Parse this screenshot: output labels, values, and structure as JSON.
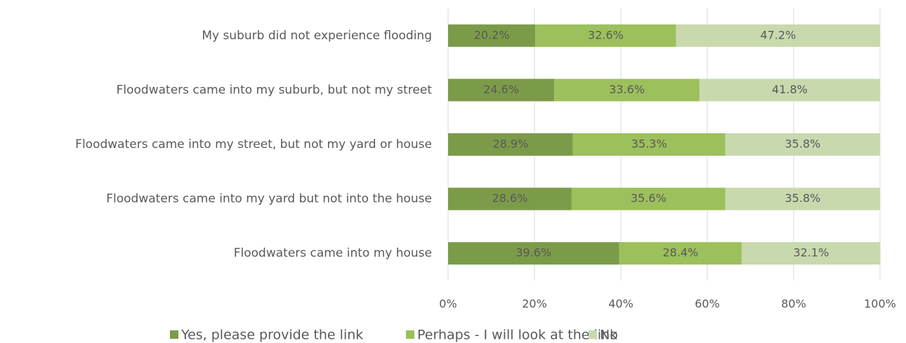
{
  "chart_data": {
    "type": "bar",
    "orientation": "horizontal",
    "stacked": true,
    "categories": [
      "My suburb did not experience flooding",
      "Floodwaters came into my suburb, but not my street",
      "Floodwaters came into my street, but not my yard or house",
      "Floodwaters came into my yard but not into the house",
      "Floodwaters came into my house"
    ],
    "series": [
      {
        "name": "Yes, please provide the link",
        "color": "#7b9b49",
        "values": [
          20.2,
          24.6,
          28.9,
          28.6,
          39.6
        ],
        "value_labels": [
          "20.2%",
          "24.6%",
          "28.9%",
          "28.6%",
          "39.6%"
        ]
      },
      {
        "name": "Perhaps - I will look at the link",
        "color": "#9cc05b",
        "values": [
          32.6,
          33.6,
          35.3,
          35.6,
          28.4
        ],
        "value_labels": [
          "32.6%",
          "33.6%",
          "35.3%",
          "35.6%",
          "28.4%"
        ]
      },
      {
        "name": "No",
        "color": "#c8d9ae",
        "values": [
          47.2,
          41.8,
          35.8,
          35.8,
          32.1
        ],
        "value_labels": [
          "47.2%",
          "41.8%",
          "35.8%",
          "35.8%",
          "32.1%"
        ]
      }
    ],
    "xlim": [
      0,
      100
    ],
    "xticks": [
      {
        "value": 0,
        "label": "0%"
      },
      {
        "value": 20,
        "label": "20%"
      },
      {
        "value": 40,
        "label": "40%"
      },
      {
        "value": 60,
        "label": "60%"
      },
      {
        "value": 80,
        "label": "80%"
      },
      {
        "value": 100,
        "label": "100%"
      }
    ],
    "grid": true,
    "legend": "bottom"
  }
}
